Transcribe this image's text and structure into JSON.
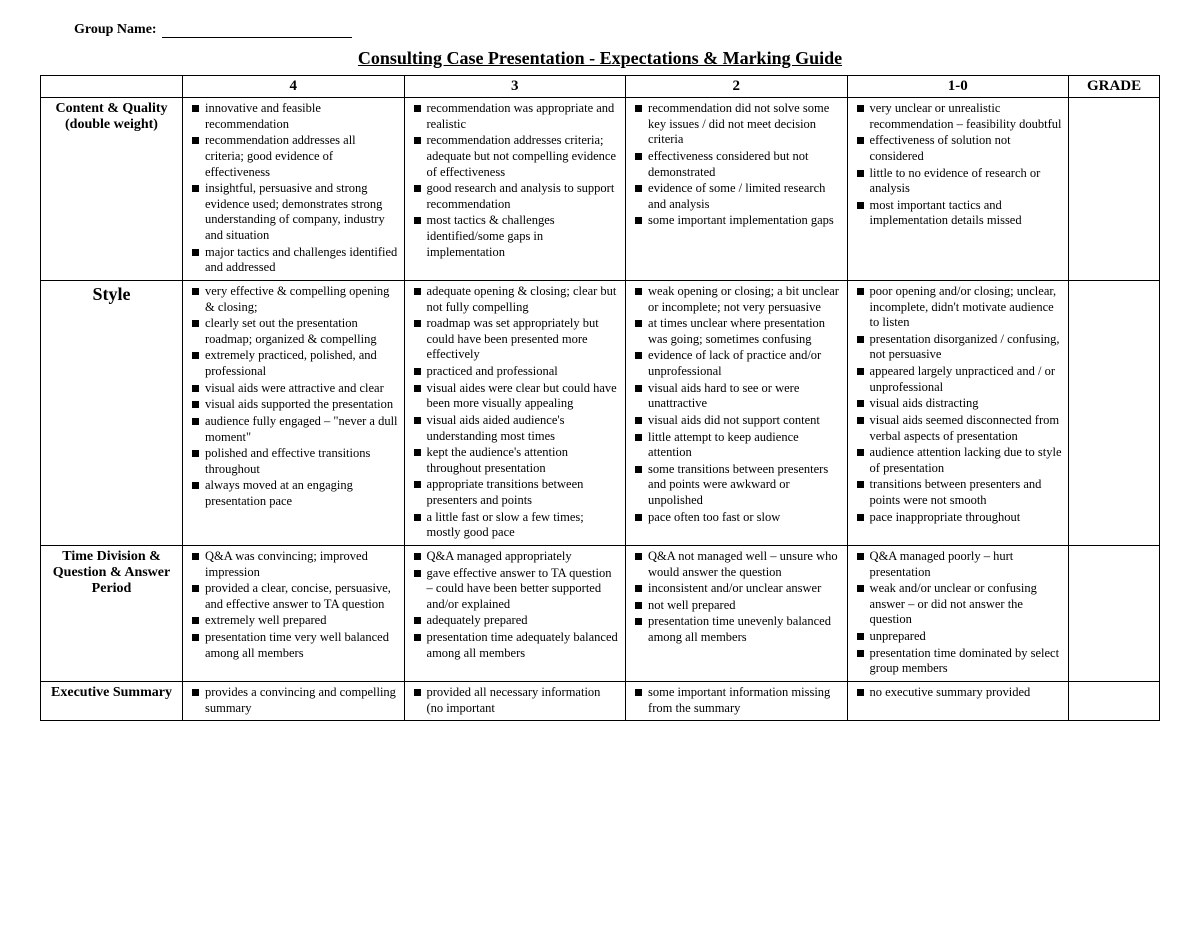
{
  "header": {
    "group_name_label": "Group Name:",
    "title": "Consulting Case Presentation - Expectations & Marking Guide"
  },
  "columns": {
    "c0": "",
    "c4": "4",
    "c3": "3",
    "c2": "2",
    "c10": "1-0",
    "grade": "GRADE"
  },
  "rows": [
    {
      "criterion": "Content & Quality (double weight)",
      "big": false,
      "levels": {
        "4": [
          "innovative and feasible recommendation",
          "recommendation addresses all criteria; good evidence of effectiveness",
          "insightful, persuasive and strong evidence used; demonstrates strong understanding of company, industry and situation",
          "major tactics and challenges identified and addressed"
        ],
        "3": [
          "recommendation was appropriate and realistic",
          "recommendation addresses criteria; adequate but not compelling evidence of effectiveness",
          "good research and analysis to support recommendation",
          "most tactics & challenges identified/some gaps in implementation"
        ],
        "2": [
          "recommendation did not solve some key issues / did not meet decision criteria",
          "effectiveness considered but not demonstrated",
          "evidence of some / limited research and analysis",
          "some important implementation gaps"
        ],
        "1-0": [
          "very unclear or unrealistic recommendation – feasibility doubtful",
          "effectiveness of solution not considered",
          "little to no evidence of research or analysis",
          "most important tactics and implementation details missed"
        ]
      }
    },
    {
      "criterion": "Style",
      "big": true,
      "levels": {
        "4": [
          "very effective & compelling opening & closing;",
          "clearly set out the presentation roadmap; organized & compelling",
          "extremely practiced, polished, and professional",
          "visual aids were attractive and clear",
          "visual aids supported the presentation",
          "audience fully engaged – \"never a dull moment\"",
          "polished and effective transitions throughout",
          "always moved at an engaging presentation pace"
        ],
        "3": [
          "adequate opening & closing; clear but not fully compelling",
          "roadmap was set appropriately but could have been presented more effectively",
          "practiced and professional",
          "visual aides were clear but could have been more visually appealing",
          "visual aids aided audience's understanding most times",
          "kept the audience's attention throughout presentation",
          "appropriate transitions between presenters and points",
          "a little fast or slow a few times; mostly good pace"
        ],
        "2": [
          "weak opening or closing; a bit unclear or incomplete; not very persuasive",
          "at times unclear where presentation was going; sometimes confusing",
          "evidence of lack of practice and/or unprofessional",
          "visual aids hard to see or were unattractive",
          "visual aids did not support content",
          "little attempt to keep audience attention",
          "some transitions between presenters and points were awkward or unpolished",
          "pace often too fast or slow"
        ],
        "1-0": [
          "poor opening and/or closing; unclear, incomplete, didn't motivate audience to listen",
          "presentation disorganized / confusing, not persuasive",
          "appeared largely unpracticed and / or unprofessional",
          "visual aids distracting",
          "visual aids seemed disconnected from verbal aspects of presentation",
          "audience attention lacking due to style of presentation",
          "transitions between presenters and points were not smooth",
          "pace inappropriate throughout"
        ]
      }
    },
    {
      "criterion": "Time Division & Question & Answer Period",
      "big": false,
      "levels": {
        "4": [
          "Q&A was convincing; improved impression",
          "provided a clear, concise, persuasive, and effective answer to TA question",
          "extremely well prepared",
          "presentation time very well balanced among all members"
        ],
        "3": [
          "Q&A managed appropriately",
          "gave effective answer to TA question – could have been better supported and/or explained",
          "adequately prepared",
          "presentation time adequately balanced among all members"
        ],
        "2": [
          "Q&A not managed well – unsure who would answer the question",
          "inconsistent and/or unclear answer",
          "not well prepared",
          "presentation time unevenly balanced among all members"
        ],
        "1-0": [
          "Q&A managed poorly – hurt presentation",
          "weak and/or unclear or confusing answer – or did not answer the question",
          "unprepared",
          "presentation time dominated by select group members"
        ]
      }
    },
    {
      "criterion": "Executive Summary",
      "big": false,
      "levels": {
        "4": [
          "provides a convincing and compelling summary"
        ],
        "3": [
          "provided all necessary information (no important"
        ],
        "2": [
          "some important information missing from the summary"
        ],
        "1-0": [
          "no executive summary provided"
        ]
      }
    }
  ]
}
